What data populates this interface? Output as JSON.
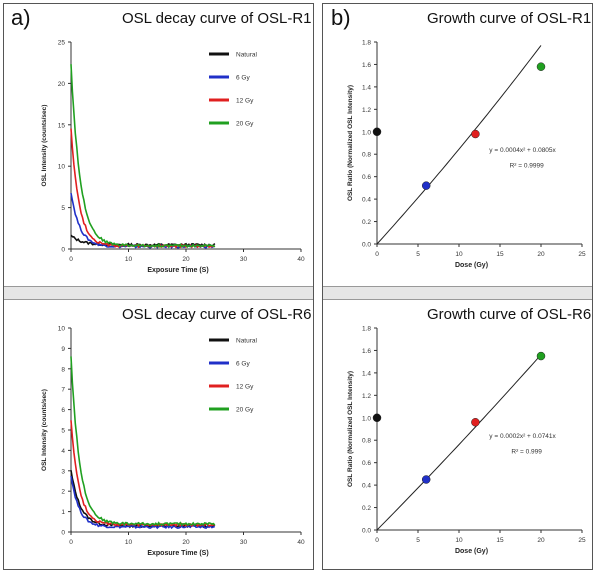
{
  "panels": {
    "a_letter": "a)",
    "b_letter": "b)"
  },
  "chart_data": [
    {
      "type": "line",
      "title": "OSL decay curve of OSL-R1",
      "xlabel": "Exposure Time (S)",
      "ylabel": "OSL Intensity (counts/sec)",
      "xlim": [
        0,
        40
      ],
      "ylim": [
        0,
        25
      ],
      "xticks": [
        0,
        10,
        20,
        30,
        40
      ],
      "yticks": [
        0,
        5,
        10,
        15,
        20,
        25
      ],
      "legend": "top-right",
      "series": [
        {
          "name": "Natural",
          "color": "#111111",
          "initial": 1.6,
          "plateau": 0.5,
          "tau": 1.9,
          "xmax": 25
        },
        {
          "name": "6 Gy",
          "color": "#2030c8",
          "initial": 6.9,
          "plateau": 0.3,
          "tau": 1.5,
          "xmax": 25
        },
        {
          "name": "12 Gy",
          "color": "#e02020",
          "initial": 14.6,
          "plateau": 0.35,
          "tau": 1.4,
          "xmax": 25
        },
        {
          "name": "20 Gy",
          "color": "#20a020",
          "initial": 22.3,
          "plateau": 0.4,
          "tau": 1.6,
          "xmax": 25
        }
      ]
    },
    {
      "type": "scatter",
      "title": "Growth curve of OSL-R1",
      "xlabel": "Dose (Gy)",
      "ylabel": "OSL Ratio (Normalized OSL Intensity)",
      "xlim": [
        0,
        25
      ],
      "ylim": [
        0,
        1.8
      ],
      "xticks": [
        0,
        5,
        10,
        15,
        20,
        25
      ],
      "yticks": [
        0.0,
        0.2,
        0.4,
        0.6,
        0.8,
        1.0,
        1.2,
        1.4,
        1.6,
        1.8
      ],
      "points": [
        {
          "x": 0,
          "y": 1.0,
          "color": "#111111"
        },
        {
          "x": 6,
          "y": 0.52,
          "color": "#2030c8"
        },
        {
          "x": 12,
          "y": 0.98,
          "color": "#e02020"
        },
        {
          "x": 20,
          "y": 1.58,
          "color": "#20a020"
        }
      ],
      "fit": {
        "a": 0.0004,
        "b": 0.0805,
        "x0": 0,
        "x1": 20
      },
      "equation": "y = 0.0004x² + 0.0805x",
      "r2": "R² = 0.9999"
    },
    {
      "type": "line",
      "title": "OSL decay curve of OSL-R6",
      "xlabel": "Exposure Time (S)",
      "ylabel": "OSL Intensity (counts/sec)",
      "xlim": [
        0,
        40
      ],
      "ylim": [
        0,
        10
      ],
      "xticks": [
        0,
        10,
        20,
        30,
        40
      ],
      "yticks": [
        0,
        1,
        2,
        3,
        4,
        5,
        6,
        7,
        8,
        9,
        10
      ],
      "legend": "top-right",
      "series": [
        {
          "name": "Natural",
          "color": "#111111",
          "initial": 3.0,
          "plateau": 0.3,
          "tau": 1.6,
          "xmax": 25
        },
        {
          "name": "6 Gy",
          "color": "#2030c8",
          "initial": 2.8,
          "plateau": 0.25,
          "tau": 1.4,
          "xmax": 25
        },
        {
          "name": "12 Gy",
          "color": "#e02020",
          "initial": 5.5,
          "plateau": 0.35,
          "tau": 1.4,
          "xmax": 25
        },
        {
          "name": "20 Gy",
          "color": "#20a020",
          "initial": 8.6,
          "plateau": 0.4,
          "tau": 1.5,
          "xmax": 25
        }
      ]
    },
    {
      "type": "scatter",
      "title": "Growth curve of OSL-R6",
      "xlabel": "Dose (Gy)",
      "ylabel": "OSL Ratio (Normalized OSL Intensity)",
      "xlim": [
        0,
        25
      ],
      "ylim": [
        0,
        1.8
      ],
      "xticks": [
        0,
        5,
        10,
        15,
        20,
        25
      ],
      "yticks": [
        0.0,
        0.2,
        0.4,
        0.6,
        0.8,
        1.0,
        1.2,
        1.4,
        1.6,
        1.8
      ],
      "points": [
        {
          "x": 0,
          "y": 1.0,
          "color": "#111111"
        },
        {
          "x": 6,
          "y": 0.45,
          "color": "#2030c8"
        },
        {
          "x": 12,
          "y": 0.96,
          "color": "#e02020"
        },
        {
          "x": 20,
          "y": 1.55,
          "color": "#20a020"
        }
      ],
      "fit": {
        "a": 0.0002,
        "b": 0.0741,
        "x0": 0,
        "x1": 20
      },
      "equation": "y = 0.0002x² + 0.0741x",
      "r2": "R² = 0.999"
    }
  ]
}
